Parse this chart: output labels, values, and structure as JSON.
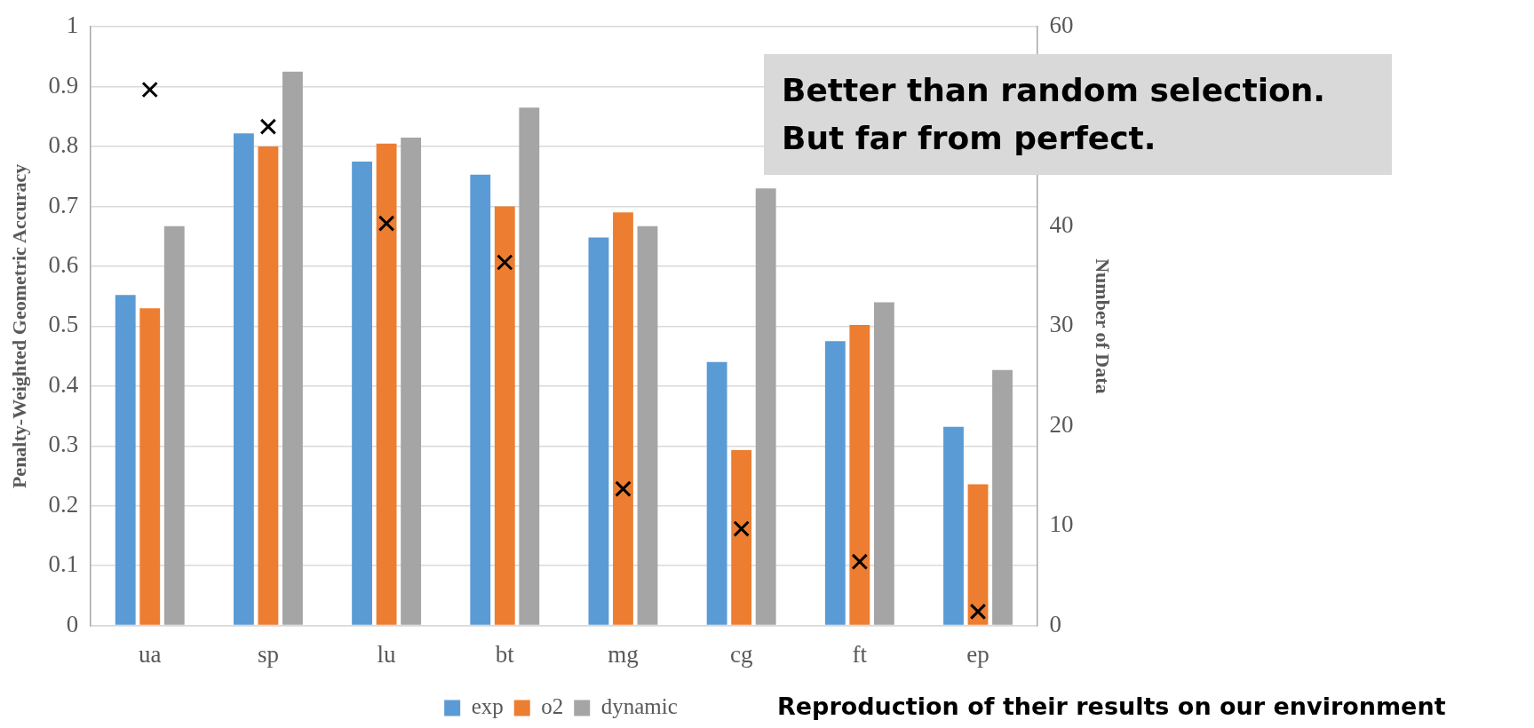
{
  "chart_data": {
    "type": "bar",
    "ylabel": "Penalty-Weighted Geometric Accuracy",
    "y2label": "Number of Data",
    "categories": [
      "ua",
      "sp",
      "lu",
      "bt",
      "mg",
      "cg",
      "ft",
      "ep"
    ],
    "series": [
      {
        "name": "exp",
        "color": "#5b9bd5",
        "values": [
          0.552,
          0.822,
          0.775,
          0.753,
          0.648,
          0.44,
          0.475,
          0.332
        ]
      },
      {
        "name": "o2",
        "color": "#ed7d31",
        "values": [
          0.53,
          0.8,
          0.805,
          0.7,
          0.69,
          0.293,
          0.502,
          0.236
        ]
      },
      {
        "name": "dynamic",
        "color": "#a5a5a5",
        "values": [
          0.667,
          0.925,
          0.815,
          0.865,
          0.667,
          0.73,
          0.54,
          0.427
        ]
      },
      {
        "type": "scatter",
        "axis": "y2",
        "marker": "cross",
        "color": "#000000",
        "x": [
          "ua",
          "sp",
          "lu",
          "bt",
          "mg",
          "cg",
          "ft",
          "ep"
        ],
        "values": [
          53.7,
          50,
          40.3,
          36.4,
          13.7,
          9.7,
          6.4,
          1.4
        ]
      }
    ],
    "ylim": [
      0,
      1
    ],
    "yticks": [
      0,
      0.1,
      0.2,
      0.3,
      0.4,
      0.5,
      0.6,
      0.7,
      0.8,
      0.9,
      1
    ],
    "y2lim": [
      0,
      60
    ],
    "y2ticks": [
      0,
      10,
      20,
      30,
      40,
      60
    ],
    "grid": "y",
    "legend": "bottom",
    "annotations": [
      "Better than random selection.\nBut far from perfect.",
      "Reproduction of their results on our environment"
    ]
  }
}
